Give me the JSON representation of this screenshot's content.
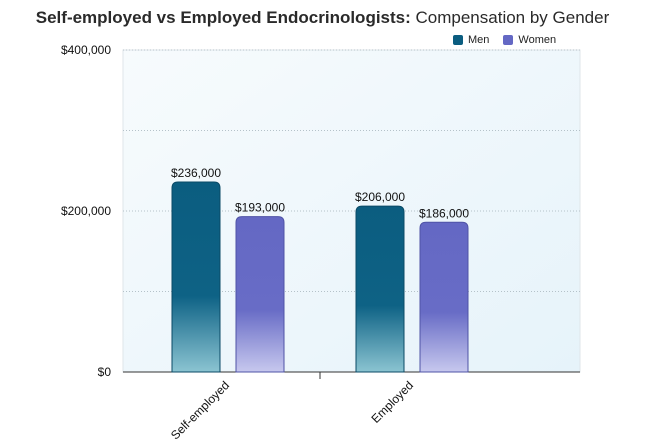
{
  "chart_data": {
    "type": "bar",
    "title_bold": "Self-employed vs Employed Endocrinologists:",
    "title_rest": " Compensation by Gender",
    "categories": [
      "Self-employed",
      "Employed"
    ],
    "series": [
      {
        "name": "Men",
        "values": [
          236000,
          206000
        ],
        "value_labels": [
          "$236,000",
          "$206,000"
        ],
        "color": "#0b5d80"
      },
      {
        "name": "Women",
        "values": [
          193000,
          186000
        ],
        "value_labels": [
          "$193,000",
          "$186,000"
        ],
        "color": "#6468c4"
      }
    ],
    "ylim": [
      0,
      400000
    ],
    "yticks": [
      0,
      200000,
      400000
    ],
    "ytick_labels": [
      "$0",
      "$200,000",
      "$400,000"
    ],
    "grid": true,
    "legend_position": "top-right"
  }
}
